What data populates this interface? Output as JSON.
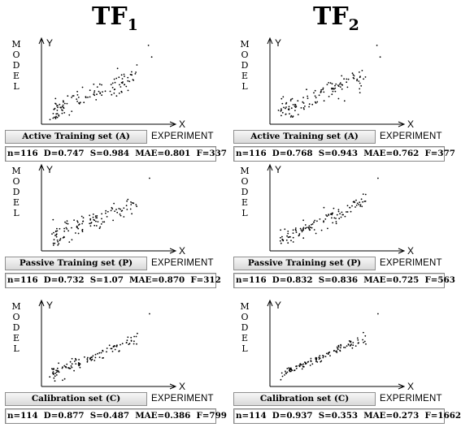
{
  "columns": [
    {
      "title": "TF",
      "subscript": "1"
    },
    {
      "title": "TF",
      "subscript": "2"
    }
  ],
  "y_axis_label": "MODEL",
  "x_axis_label": "EXPERIMENT",
  "axis_x_symbol": "X",
  "axis_y_symbol": "Y",
  "panels": [
    {
      "set_label": "Active Training set (A)",
      "stats": "n=116  D=0.747  S=0.984  MAE=0.801  F=337"
    },
    {
      "set_label": "Active Training set (A)",
      "stats": "n=116  D=0.768  S=0.943  MAE=0.762  F=377"
    },
    {
      "set_label": "Passive Training set (P)",
      "stats": "n=116  D=0.732  S=1.07  MAE=0.870  F=312"
    },
    {
      "set_label": "Passive Training set (P)",
      "stats": "n=116  D=0.832  S=0.836  MAE=0.725  F=563"
    },
    {
      "set_label": "Calibration set (C)",
      "stats": "n=114  D=0.877  S=0.487  MAE=0.386  F=799"
    },
    {
      "set_label": "Calibration set (C)",
      "stats": "n=114  D=0.937  S=0.353  MAE=0.273  F=1662"
    }
  ],
  "chart_data": [
    {
      "type": "scatter",
      "title": "Active Training set (A)",
      "xlabel": "EXPERIMENT",
      "ylabel": "MODEL",
      "n": 116,
      "D": 0.747,
      "S": 0.984,
      "MAE": 0.801,
      "F": 337,
      "grid": false,
      "xlim": [
        0,
        1
      ],
      "ylim": [
        0,
        1
      ]
    },
    {
      "type": "scatter",
      "title": "Active Training set (A)",
      "xlabel": "EXPERIMENT",
      "ylabel": "MODEL",
      "n": 116,
      "D": 0.768,
      "S": 0.943,
      "MAE": 0.762,
      "F": 377,
      "grid": false,
      "xlim": [
        0,
        1
      ],
      "ylim": [
        0,
        1
      ]
    },
    {
      "type": "scatter",
      "title": "Passive Training set (P)",
      "xlabel": "EXPERIMENT",
      "ylabel": "MODEL",
      "n": 116,
      "D": 0.732,
      "S": 1.07,
      "MAE": 0.87,
      "F": 312,
      "grid": false,
      "xlim": [
        0,
        1
      ],
      "ylim": [
        0,
        1
      ]
    },
    {
      "type": "scatter",
      "title": "Passive Training set (P)",
      "xlabel": "EXPERIMENT",
      "ylabel": "MODEL",
      "n": 116,
      "D": 0.832,
      "S": 0.836,
      "MAE": 0.725,
      "F": 563,
      "grid": false,
      "xlim": [
        0,
        1
      ],
      "ylim": [
        0,
        1
      ]
    },
    {
      "type": "scatter",
      "title": "Calibration set (C)",
      "xlabel": "EXPERIMENT",
      "ylabel": "MODEL",
      "n": 114,
      "D": 0.877,
      "S": 0.487,
      "MAE": 0.386,
      "F": 799,
      "grid": false,
      "xlim": [
        0,
        1
      ],
      "ylim": [
        0,
        1
      ]
    },
    {
      "type": "scatter",
      "title": "Calibration set (C)",
      "xlabel": "EXPERIMENT",
      "ylabel": "MODEL",
      "n": 114,
      "D": 0.937,
      "S": 0.353,
      "MAE": 0.273,
      "F": 1662,
      "grid": false,
      "xlim": [
        0,
        1
      ],
      "ylim": [
        0,
        1
      ]
    }
  ]
}
